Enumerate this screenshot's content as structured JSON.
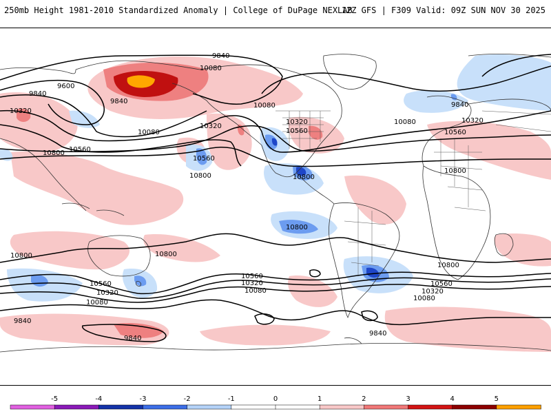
{
  "header": {
    "title": "250mb Height 1981-2010 Standardized Anomaly | College of DuPage NEXLAB",
    "run_info": "12Z GFS | F309 Valid: 09Z SUN NOV 30 2025"
  },
  "colorbar": {
    "ticks": [
      "-5",
      "-4",
      "-3",
      "-2",
      "-1",
      "0",
      "1",
      "2",
      "3",
      "4",
      "5"
    ],
    "colors": [
      "#e060e0",
      "#8a1ab8",
      "#1432a8",
      "#3c6ee6",
      "#b4d2f8",
      "#ffffff",
      "#ffffff",
      "#f8c8c8",
      "#f07878",
      "#d21414",
      "#8c0000",
      "#ffa000"
    ]
  },
  "contour_labels": [
    "9840",
    "10080",
    "9600",
    "9840",
    "10320",
    "10080",
    "10800",
    "10560",
    "10560",
    "10800",
    "10320",
    "10080",
    "10320",
    "10560",
    "10800",
    "9840",
    "10320",
    "10080",
    "10560",
    "10800",
    "10800",
    "10800",
    "10800",
    "10800",
    "10560",
    "10320",
    "10080",
    "9840",
    "10560",
    "10320",
    "10080",
    "9840",
    "10560",
    "10320",
    "10080",
    "9840",
    "9840"
  ],
  "anomaly_palette": {
    "light_blue": "#c8e0fa",
    "mid_blue": "#6c9cf0",
    "dark_blue": "#1e46c8",
    "light_red": "#f8c8c8",
    "mid_red": "#ee8080",
    "dark_red": "#c01010",
    "orange": "#ffa800"
  }
}
